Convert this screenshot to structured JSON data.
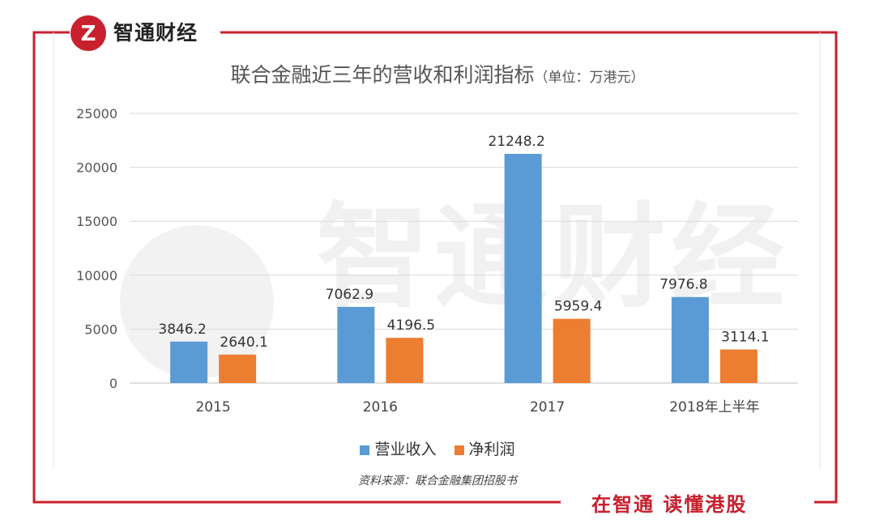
{
  "brand": {
    "name": "智通财经",
    "logo_glyph": "Z"
  },
  "footer": {
    "slogan": "在智通  读懂港股",
    "source": "资料来源：联合金融集团招股书"
  },
  "watermark": {
    "text": "智通财经"
  },
  "colors": {
    "frame": "#c8202e",
    "revenue": "#5b9bd5",
    "profit": "#ed7d31",
    "grid": "#d9d9d9"
  },
  "chart_data": {
    "type": "bar",
    "title": "联合金融近三年的营收和利润指标",
    "unit_note": "（单位：万港元）",
    "categories": [
      "2015",
      "2016",
      "2017",
      "2018年上半年"
    ],
    "series": [
      {
        "name": "营业收入",
        "values": [
          3846.2,
          7062.9,
          21248.2,
          7976.8
        ]
      },
      {
        "name": "净利润",
        "values": [
          2640.1,
          4196.5,
          5959.4,
          3114.1
        ]
      }
    ],
    "value_labels": [
      [
        "3846.2",
        "7062.9",
        "21248.2",
        "7976.8"
      ],
      [
        "2640.1",
        "4196.5",
        "5959.4",
        "3114.1"
      ]
    ],
    "ylim": [
      0,
      25000
    ],
    "yticks": [
      "0",
      "5000",
      "10000",
      "15000",
      "20000",
      "25000"
    ],
    "grid": true,
    "legend_position": "bottom"
  }
}
